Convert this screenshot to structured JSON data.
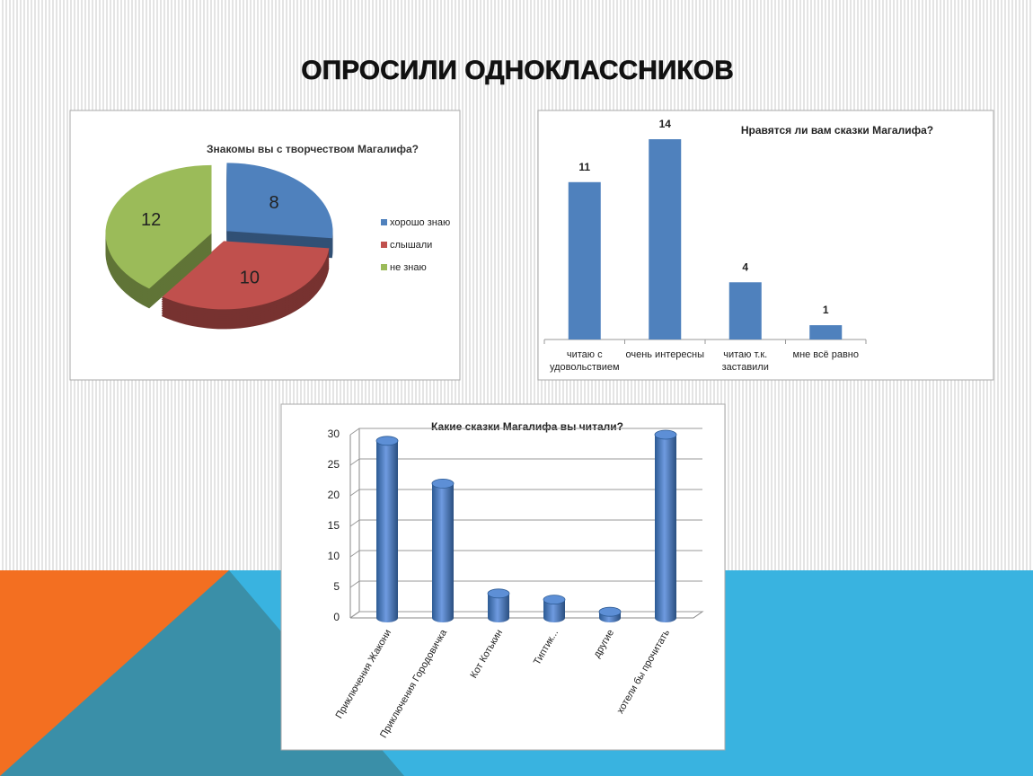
{
  "title": "ОПРОСИЛИ ОДНОКЛАССНИКОВ",
  "chart_data": [
    {
      "type": "pie",
      "title": "Знакомы вы с творчеством Магалифа?",
      "categories": [
        "хорошо знаю",
        "слышали",
        "не знаю"
      ],
      "values": [
        8,
        10,
        12
      ],
      "colors": [
        "#4f81bd",
        "#c0504d",
        "#9bbb59"
      ],
      "legend": "right"
    },
    {
      "type": "bar",
      "title": "Нравятся ли вам сказки Магалифа?",
      "categories": [
        "читаю с удовольствием",
        "очень интересны",
        "читаю т.к. заставили",
        "мне всё равно"
      ],
      "values": [
        11,
        14,
        4,
        1
      ],
      "color": "#4f81bd"
    },
    {
      "type": "bar",
      "style": "cylinder",
      "title": "Какие сказки Магалифа вы читали?",
      "categories": [
        "Приключения Жакони",
        "Приключения Городовичка",
        "Кот Котькин",
        "Типтик...",
        "другие",
        "хотели бы прочитать"
      ],
      "values": [
        29,
        22,
        4,
        3,
        1,
        30
      ],
      "color": "#4f81bd",
      "ylim": [
        0,
        30
      ],
      "yticks": [
        0,
        5,
        10,
        15,
        20,
        25,
        30
      ],
      "grid": true
    }
  ]
}
